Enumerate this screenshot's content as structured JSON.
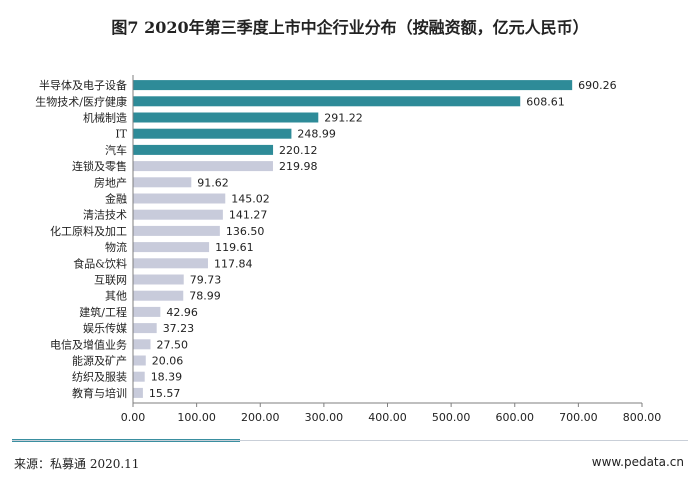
{
  "colors": {
    "highlight_bar": "#2e8b98",
    "normal_bar": "#c8cbdb",
    "axis": "#7f7f7f"
  },
  "footer": {
    "source": "来源：私募通 2020.11",
    "site": "www.pedata.cn"
  },
  "chart_data": {
    "type": "bar",
    "orientation": "horizontal",
    "title": "图7 2020年第三季度上市中企行业分布（按融资额，亿元人民币）",
    "categories": [
      "半导体及电子设备",
      "生物技术/医疗健康",
      "机械制造",
      "IT",
      "汽车",
      "连锁及零售",
      "房地产",
      "金融",
      "清洁技术",
      "化工原料及加工",
      "物流",
      "食品&饮料",
      "互联网",
      "其他",
      "建筑/工程",
      "娱乐传媒",
      "电信及增值业务",
      "能源及矿产",
      "纺织及服装",
      "教育与培训"
    ],
    "values": [
      690.26,
      608.61,
      291.22,
      248.99,
      220.12,
      219.98,
      91.62,
      145.02,
      141.27,
      136.5,
      119.61,
      117.84,
      79.73,
      78.99,
      42.96,
      37.23,
      27.5,
      20.06,
      18.39,
      15.57
    ],
    "value_labels": [
      "690.26",
      "608.61",
      "291.22",
      "248.99",
      "220.12",
      "219.98",
      "91.62",
      "145.02",
      "141.27",
      "136.50",
      "119.61",
      "117.84",
      "79.73",
      "78.99",
      "42.96",
      "37.23",
      "27.50",
      "20.06",
      "18.39",
      "15.57"
    ],
    "highlighted": [
      true,
      true,
      true,
      true,
      true,
      false,
      false,
      false,
      false,
      false,
      false,
      false,
      false,
      false,
      false,
      false,
      false,
      false,
      false,
      false
    ],
    "xlim": [
      0,
      800
    ],
    "x_ticks": [
      "0.00",
      "100.00",
      "200.00",
      "300.00",
      "400.00",
      "500.00",
      "600.00",
      "700.00",
      "800.00"
    ],
    "x_tick_values": [
      0,
      100,
      200,
      300,
      400,
      500,
      600,
      700,
      800
    ],
    "grid": false,
    "legend": "none"
  }
}
